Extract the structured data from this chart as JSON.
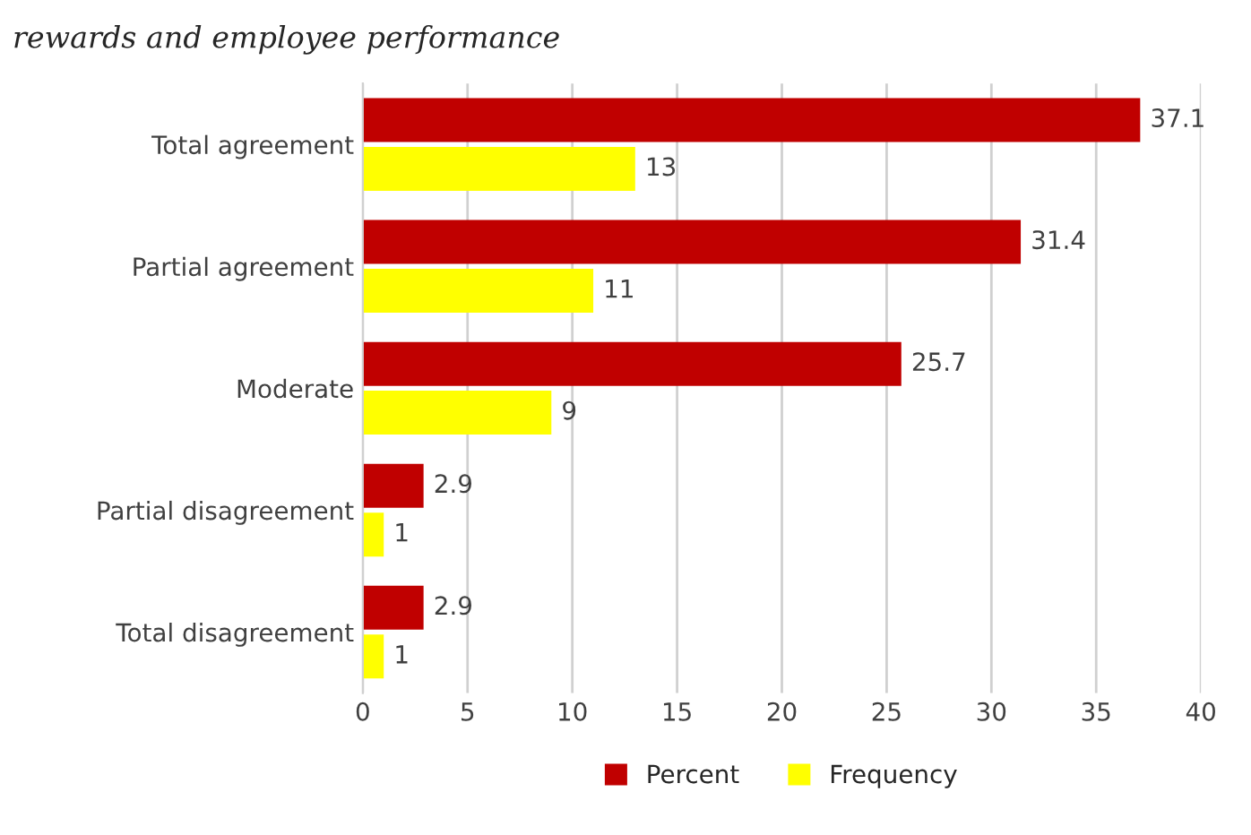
{
  "chart_data": {
    "type": "bar",
    "orientation": "horizontal",
    "title": "rewards and employee performance",
    "categories": [
      "Total agreement",
      "Partial agreement",
      "Moderate",
      "Partial disagreement",
      "Total disagreement"
    ],
    "series": [
      {
        "name": "Percent",
        "color": "#c00000",
        "values": [
          37.1,
          31.4,
          25.7,
          2.9,
          2.9
        ]
      },
      {
        "name": "Frequency",
        "color": "#ffff00",
        "values": [
          13,
          11,
          9,
          1,
          1
        ]
      }
    ],
    "xlim": [
      0,
      40
    ],
    "xticks": [
      0,
      5,
      10,
      15,
      20,
      25,
      30,
      35,
      40
    ],
    "grid": "x",
    "legend": "bottom",
    "data_labels": true
  }
}
